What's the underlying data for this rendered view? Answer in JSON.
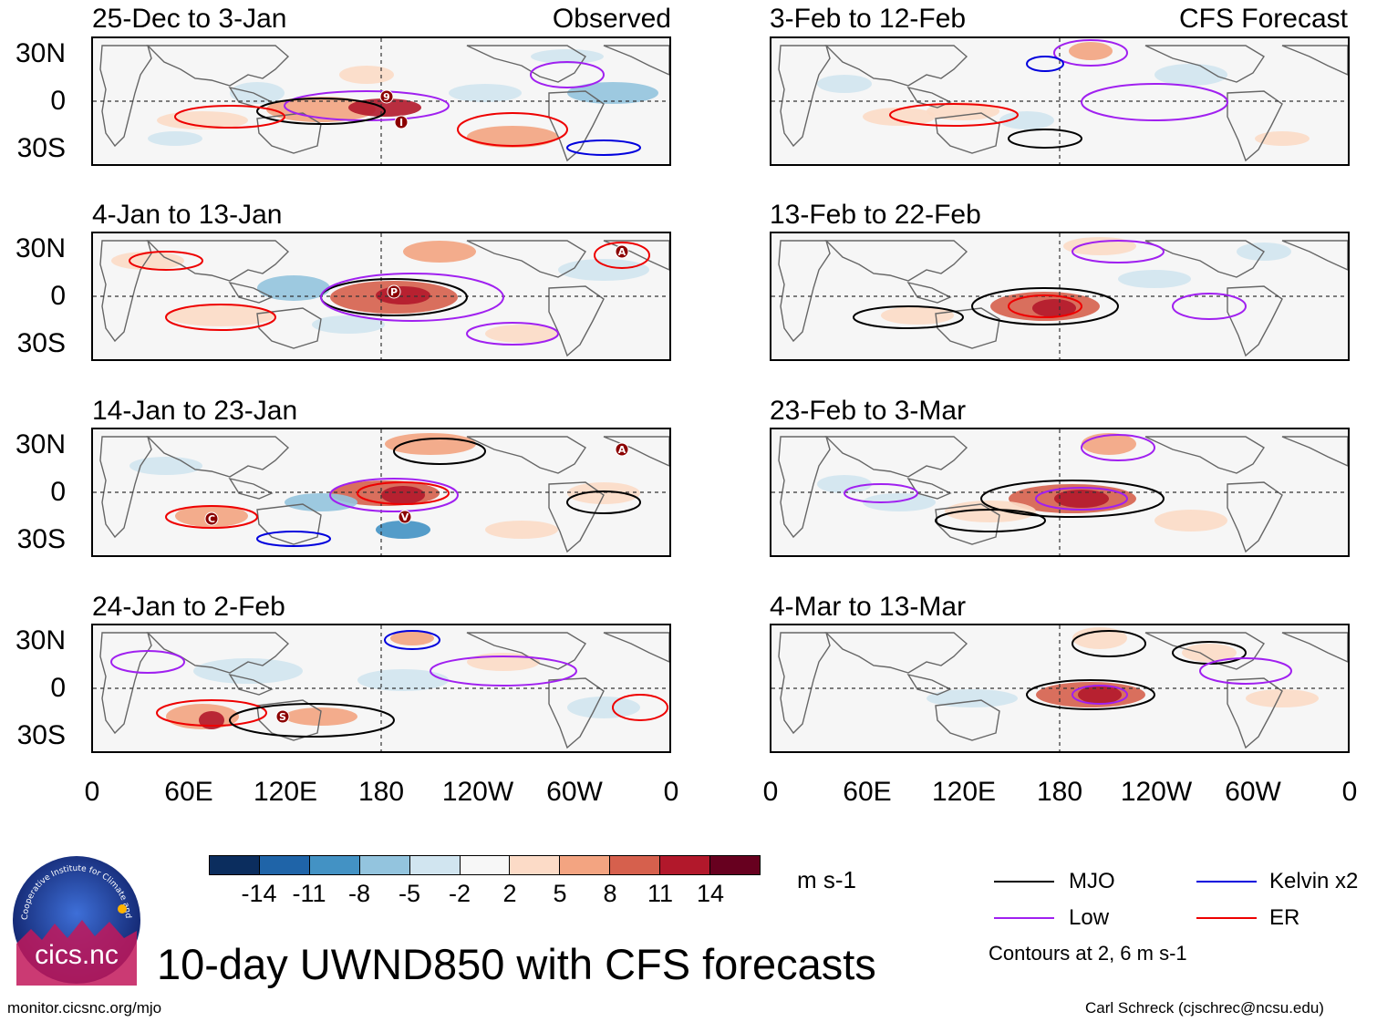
{
  "panels": {
    "left": [
      {
        "title": "25-Dec to 3-Jan",
        "tag": "Observed"
      },
      {
        "title": "4-Jan to 13-Jan",
        "tag": ""
      },
      {
        "title": "14-Jan to 23-Jan",
        "tag": ""
      },
      {
        "title": "24-Jan to 2-Feb",
        "tag": ""
      }
    ],
    "right": [
      {
        "title": "3-Feb to 12-Feb",
        "tag": "CFS Forecast"
      },
      {
        "title": "13-Feb to 22-Feb",
        "tag": ""
      },
      {
        "title": "23-Feb to 3-Mar",
        "tag": ""
      },
      {
        "title": "4-Mar to 13-Mar",
        "tag": ""
      }
    ]
  },
  "storm_labels": [
    "9",
    "I",
    "P",
    "A",
    "C",
    "V",
    "A",
    "S"
  ],
  "lat_labels": [
    "30N",
    "0",
    "30S"
  ],
  "lon_labels": [
    "0",
    "60E",
    "120E",
    "180",
    "120W",
    "60W",
    "0"
  ],
  "colorbar": {
    "labels": [
      "-14",
      "-11",
      "-8",
      "-5",
      "-2",
      "2",
      "5",
      "8",
      "11",
      "14"
    ],
    "colors": [
      "#0b2d5e",
      "#1f64a8",
      "#4392c4",
      "#93c4de",
      "#d1e5f0",
      "#f7f7f7",
      "#fcdbc7",
      "#f3a481",
      "#d6604d",
      "#b2182b",
      "#67001f"
    ],
    "units": "m s-1"
  },
  "legend": {
    "mjo": {
      "label": "MJO",
      "color": "#000000"
    },
    "kelvin": {
      "label": "Kelvin x2",
      "color": "#0000dd"
    },
    "low": {
      "label": "Low",
      "color": "#a020f0"
    },
    "er": {
      "label": "ER",
      "color": "#ee0000"
    },
    "note": "Contours at 2, 6 m s-1"
  },
  "title": "10-day UWND850 with CFS forecasts",
  "logo_text": "cics.nc",
  "logo_ring": "Cooperative Institute for Climate and Satellites",
  "footer": {
    "left": "monitor.cicsnc.org/mjo",
    "right": "Carl Schreck (cjschrec@ncsu.edu)"
  }
}
